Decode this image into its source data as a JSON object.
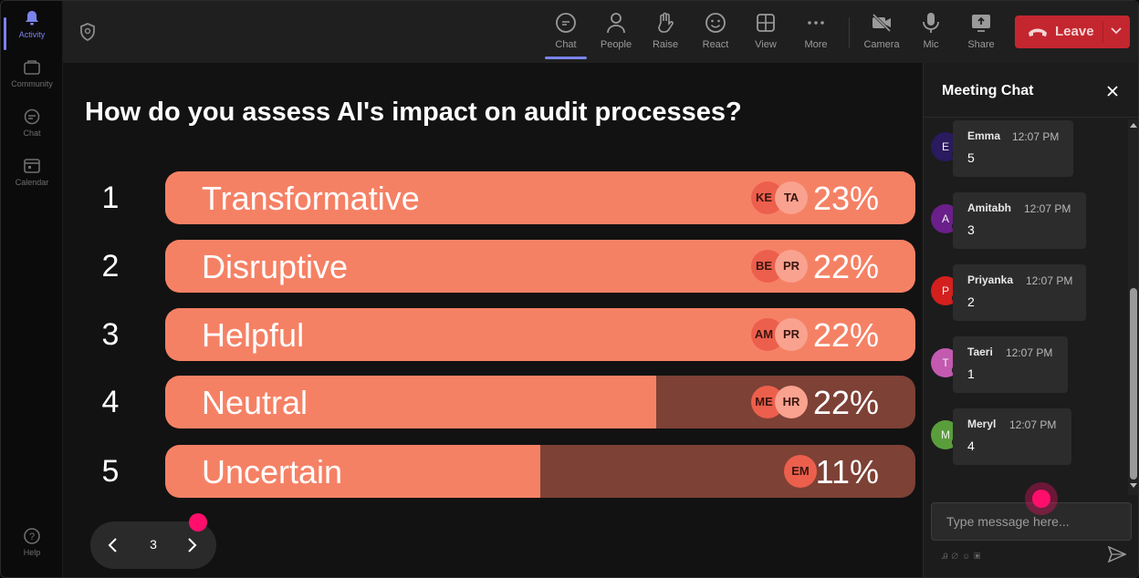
{
  "rail": {
    "items": [
      {
        "label": "Activity",
        "icon": "bell-icon",
        "active": true
      },
      {
        "label": "Community",
        "icon": "community-icon",
        "active": false
      },
      {
        "label": "Chat",
        "icon": "chat-icon",
        "active": false
      },
      {
        "label": "Calendar",
        "icon": "calendar-icon",
        "active": false
      }
    ],
    "help": "Help"
  },
  "toolbar": {
    "chat": "Chat",
    "people": "People",
    "raise": "Raise",
    "react": "React",
    "view": "View",
    "more": "More",
    "camera": "Camera",
    "mic": "Mic",
    "share": "Share",
    "leave": "Leave"
  },
  "poll": {
    "question": "How do you assess AI's impact on audit processes?",
    "options": [
      {
        "num": "1",
        "label": "Transformative",
        "percent": "23%",
        "fill": 1.0,
        "avatars": [
          "KE",
          "TA"
        ]
      },
      {
        "num": "2",
        "label": "Disruptive",
        "percent": "22%",
        "fill": 1.0,
        "avatars": [
          "BE",
          "PR"
        ]
      },
      {
        "num": "3",
        "label": "Helpful",
        "percent": "22%",
        "fill": 1.0,
        "avatars": [
          "AM",
          "PR"
        ]
      },
      {
        "num": "4",
        "label": "Neutral",
        "percent": "22%",
        "fill": 0.655,
        "avatars": [
          "ME",
          "HR"
        ]
      },
      {
        "num": "5",
        "label": "Uncertain",
        "percent": "11%",
        "fill": 0.5,
        "avatars": [
          "EM"
        ]
      }
    ],
    "page": "3"
  },
  "chat": {
    "title": "Meeting Chat",
    "messages": [
      {
        "initial": "E",
        "name": "Emma",
        "time": "12:07 PM",
        "text": "5",
        "color": "#2a1a5e"
      },
      {
        "initial": "A",
        "name": "Amitabh",
        "time": "12:07 PM",
        "text": "3",
        "color": "#6a1f8a"
      },
      {
        "initial": "P",
        "name": "Priyanka",
        "time": "12:07 PM",
        "text": "2",
        "color": "#d3201f"
      },
      {
        "initial": "T",
        "name": "Taeri",
        "time": "12:07 PM",
        "text": "1",
        "color": "#c35ab0"
      },
      {
        "initial": "M",
        "name": "Meryl",
        "time": "12:07 PM",
        "text": "4",
        "color": "#5a9e3c"
      }
    ],
    "placeholder": "Type message here..."
  },
  "colors": {
    "bar_fill": "#f58165",
    "bar_track": "#7d4136",
    "leave": "#c4262f",
    "accent": "#7b83eb",
    "cursor_dot": "#ff0f6b"
  }
}
